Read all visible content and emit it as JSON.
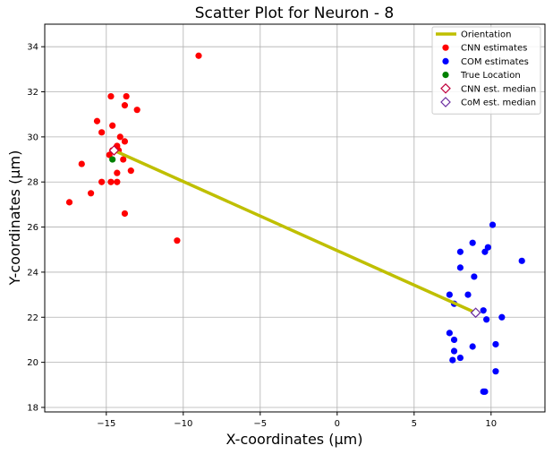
{
  "chart_data": {
    "type": "scatter",
    "title": "Scatter Plot for Neuron - 8",
    "xlabel": "X-coordinates (μm)",
    "ylabel": "Y-coordinates (μm)",
    "xlim": [
      -19,
      13.5
    ],
    "ylim": [
      17.8,
      35.0
    ],
    "xticks": [
      -15,
      -10,
      -5,
      0,
      5,
      10
    ],
    "xtick_labels": [
      "−15",
      "−10",
      "−5",
      "0",
      "5",
      "10"
    ],
    "yticks": [
      18,
      20,
      22,
      24,
      26,
      28,
      30,
      32,
      34
    ],
    "ytick_labels": [
      "18",
      "20",
      "22",
      "24",
      "26",
      "28",
      "30",
      "32",
      "34"
    ],
    "grid": true,
    "legend_position": "top-right",
    "legend": [
      {
        "label": "Orientation",
        "kind": "line",
        "color": "#bfbf00"
      },
      {
        "label": "CNN estimates",
        "kind": "dot",
        "color": "#ff0000"
      },
      {
        "label": "COM estimates",
        "kind": "dot",
        "color": "#0000ff"
      },
      {
        "label": "True Location",
        "kind": "dot",
        "color": "#008000"
      },
      {
        "label": "CNN est. median",
        "kind": "diamond",
        "color": "#c0003c"
      },
      {
        "label": "CoM est. median",
        "kind": "diamond",
        "color": "#6a2ca0"
      }
    ],
    "series": [
      {
        "name": "Orientation",
        "kind": "line",
        "color": "#bfbf00",
        "x": [
          -14.5,
          9.0
        ],
        "y": [
          29.4,
          22.2
        ]
      },
      {
        "name": "CNN estimates",
        "kind": "scatter",
        "color": "#ff0000",
        "x": [
          -9.0,
          -14.7,
          -13.7,
          -13.8,
          -13.0,
          -15.6,
          -15.3,
          -14.6,
          -14.1,
          -13.8,
          -14.3,
          -14.2,
          -14.6,
          -14.8,
          -13.9,
          -16.6,
          -13.4,
          -14.3,
          -15.3,
          -14.3,
          -14.7,
          -16.0,
          -17.4,
          -13.8,
          -10.4
        ],
        "y": [
          33.6,
          31.8,
          31.8,
          31.4,
          31.2,
          30.7,
          30.2,
          30.5,
          30.0,
          29.8,
          29.6,
          29.4,
          29.4,
          29.2,
          29.0,
          28.8,
          28.5,
          28.4,
          28.0,
          28.0,
          28.0,
          27.5,
          27.1,
          26.6,
          25.4
        ]
      },
      {
        "name": "COM estimates",
        "kind": "scatter",
        "color": "#0000ff",
        "x": [
          10.1,
          8.8,
          9.8,
          9.6,
          8.0,
          12.0,
          8.0,
          8.9,
          8.5,
          7.3,
          7.6,
          9.5,
          9.7,
          10.7,
          7.3,
          7.6,
          10.3,
          8.8,
          7.6,
          8.0,
          7.5,
          10.3,
          9.5,
          9.6
        ],
        "y": [
          26.1,
          25.3,
          25.1,
          24.9,
          24.9,
          24.5,
          24.2,
          23.8,
          23.0,
          23.0,
          22.6,
          22.3,
          21.9,
          22.0,
          21.3,
          21.0,
          20.8,
          20.7,
          20.5,
          20.2,
          20.1,
          19.6,
          18.7,
          18.7
        ]
      },
      {
        "name": "True Location",
        "kind": "scatter",
        "color": "#008000",
        "x": [
          -14.6
        ],
        "y": [
          29.0
        ]
      },
      {
        "name": "CNN est. median",
        "kind": "diamond",
        "color": "#c0003c",
        "x": [
          -14.5
        ],
        "y": [
          29.4
        ]
      },
      {
        "name": "CoM est. median",
        "kind": "diamond",
        "color": "#6a2ca0",
        "x": [
          9.0
        ],
        "y": [
          22.2
        ]
      }
    ]
  }
}
